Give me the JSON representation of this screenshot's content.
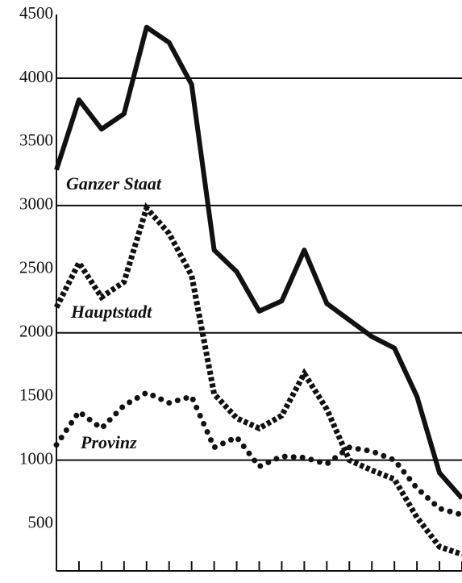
{
  "chart_data": {
    "type": "line",
    "categories": [
      null,
      null,
      null,
      null,
      null,
      null,
      null,
      null,
      null,
      null,
      null,
      null,
      null,
      null,
      null,
      null,
      null,
      null,
      null
    ],
    "series": [
      {
        "name": "Ganzer Staat",
        "color": "#111111",
        "style": "solid",
        "values": [
          3280,
          3830,
          3600,
          3720,
          4400,
          4280,
          3950,
          2650,
          2480,
          2170,
          2250,
          2650,
          2230,
          2100,
          1970,
          1880,
          1500,
          900,
          700
        ]
      },
      {
        "name": "Hauptstadt",
        "color": "#111111",
        "style": "dashed",
        "values": [
          2200,
          2550,
          2280,
          2400,
          2980,
          2780,
          2450,
          1520,
          1330,
          1250,
          1350,
          1680,
          1400,
          1000,
          920,
          850,
          550,
          320,
          260
        ]
      },
      {
        "name": "Provinz",
        "color": "#111111",
        "style": "dotted",
        "values": [
          1120,
          1380,
          1250,
          1430,
          1530,
          1450,
          1500,
          1100,
          1180,
          950,
          1030,
          1020,
          970,
          1100,
          1070,
          1000,
          780,
          620,
          570
        ]
      }
    ],
    "ylim": [
      130,
      4500
    ],
    "yticks": [
      500,
      1000,
      1500,
      2000,
      2500,
      3000,
      3500,
      4000,
      4500
    ],
    "grid": [
      1000,
      2000,
      3000,
      4000
    ]
  }
}
